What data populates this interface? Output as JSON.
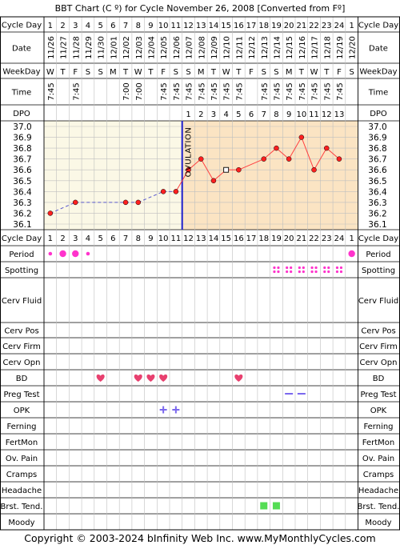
{
  "title": "BBT Chart (C º) for Cycle November 26, 2008  [Converted from Fº]",
  "labels": {
    "cycle_day": "Cycle Day",
    "date": "Date",
    "weekday": "WeekDay",
    "time": "Time",
    "dpo": "DPO",
    "period": "Period",
    "spotting": "Spotting",
    "cerv_fluid": "Cerv Fluid",
    "cerv_pos": "Cerv Pos",
    "cerv_firm": "Cerv Firm",
    "cerv_opn": "Cerv Opn",
    "bd": "BD",
    "preg_test": "Preg Test",
    "opk": "OPK",
    "ferning": "Ferning",
    "fertmon": "FertMon",
    "ov_pain": "Ov. Pain",
    "cramps": "Cramps",
    "headache": "Headache",
    "brst_tend": "Brst. Tend.",
    "moody": "Moody"
  },
  "ovulation_label": "OVULATION",
  "footer": "Copyright © 2003-2024 bInfinity Web Inc.     www.MyMonthlyCycles.com",
  "colors": {
    "pre_ovulation_bg": "#fbf8e6",
    "post_ovulation_bg": "#fbe4c3",
    "temp_line": "#ff4040",
    "temp_marker_fill": "#ff2020",
    "coverline": "#5a5acd",
    "ovulation_line": "#1e1ecc",
    "period": "#ff33cc",
    "spotting": "#ff33cc",
    "bd_heart": "#e8406f",
    "preg_test": "#7b68ee",
    "opk": "#7b68ee",
    "breast_tenderness": "#55dd55",
    "grid": "#bfbfbf",
    "grid_strong": "#000000"
  },
  "chart_data": {
    "type": "line",
    "x": [
      1,
      2,
      3,
      4,
      5,
      6,
      7,
      8,
      9,
      10,
      11,
      12,
      13,
      14,
      15,
      16,
      17,
      18,
      19,
      20,
      21,
      22,
      23,
      24,
      1
    ],
    "cycle_days": [
      "1",
      "2",
      "3",
      "4",
      "5",
      "6",
      "7",
      "8",
      "9",
      "10",
      "11",
      "12",
      "13",
      "14",
      "15",
      "16",
      "17",
      "18",
      "19",
      "20",
      "21",
      "22",
      "23",
      "24",
      "1"
    ],
    "dates": [
      "11/26",
      "11/27",
      "11/28",
      "11/29",
      "11/30",
      "12/01",
      "12/02",
      "12/03",
      "12/04",
      "12/05",
      "12/06",
      "12/07",
      "12/08",
      "12/09",
      "12/10",
      "12/11",
      "12/12",
      "12/13",
      "12/14",
      "12/15",
      "12/16",
      "12/17",
      "12/18",
      "12/19",
      "12/20"
    ],
    "weekdays": [
      "W",
      "T",
      "F",
      "S",
      "S",
      "M",
      "T",
      "W",
      "T",
      "F",
      "S",
      "S",
      "M",
      "T",
      "W",
      "T",
      "F",
      "S",
      "S",
      "M",
      "T",
      "W",
      "T",
      "F",
      "S"
    ],
    "times": [
      "7:45",
      "",
      "7:45",
      "",
      "",
      "",
      "7:00",
      "7:00",
      "",
      "7:45",
      "7:45",
      "7:45",
      "7:45",
      "7:45",
      "7:45",
      "7:45",
      "",
      "7:45",
      "7:45",
      "7:45",
      "7:45",
      "7:45",
      "7:45",
      "7:45",
      ""
    ],
    "dpo": [
      "",
      "",
      "",
      "",
      "",
      "",
      "",
      "",
      "",
      "",
      "",
      "1",
      "2",
      "3",
      "4",
      "5",
      "6",
      "7",
      "8",
      "9",
      "10",
      "11",
      "12",
      "13",
      ""
    ],
    "temps": [
      36.2,
      null,
      36.3,
      null,
      null,
      null,
      36.3,
      36.3,
      null,
      36.4,
      36.4,
      36.6,
      36.7,
      36.5,
      36.6,
      36.6,
      null,
      36.7,
      36.8,
      36.7,
      36.9,
      36.6,
      36.8,
      36.7,
      null
    ],
    "temp_marker_style": [
      "circle",
      null,
      "circle",
      null,
      null,
      null,
      "circle",
      "circle",
      null,
      "circle",
      "circle",
      "circle",
      "circle",
      "circle",
      "square",
      "circle",
      null,
      "circle",
      "circle",
      "circle",
      "circle",
      "circle",
      "circle",
      "circle",
      null
    ],
    "ylim": [
      36.1,
      37.0
    ],
    "y_ticks": [
      "37.0",
      "36.9",
      "36.8",
      "36.7",
      "36.6",
      "36.5",
      "36.4",
      "36.3",
      "36.2",
      "36.1"
    ],
    "ovulation_day": 11,
    "observations": {
      "period": [
        {
          "day": 1,
          "size": "small"
        },
        {
          "day": 2,
          "size": "large"
        },
        {
          "day": 3,
          "size": "large"
        },
        {
          "day": 4,
          "size": "small"
        },
        {
          "day": 25,
          "size": "large"
        }
      ],
      "spotting": [
        19,
        20,
        21,
        22,
        23,
        24
      ],
      "bd": [
        5,
        8,
        9,
        10,
        16
      ],
      "preg_test": [
        20,
        21
      ],
      "opk": [
        10,
        11
      ],
      "breast_tenderness": [
        18,
        19
      ]
    }
  }
}
